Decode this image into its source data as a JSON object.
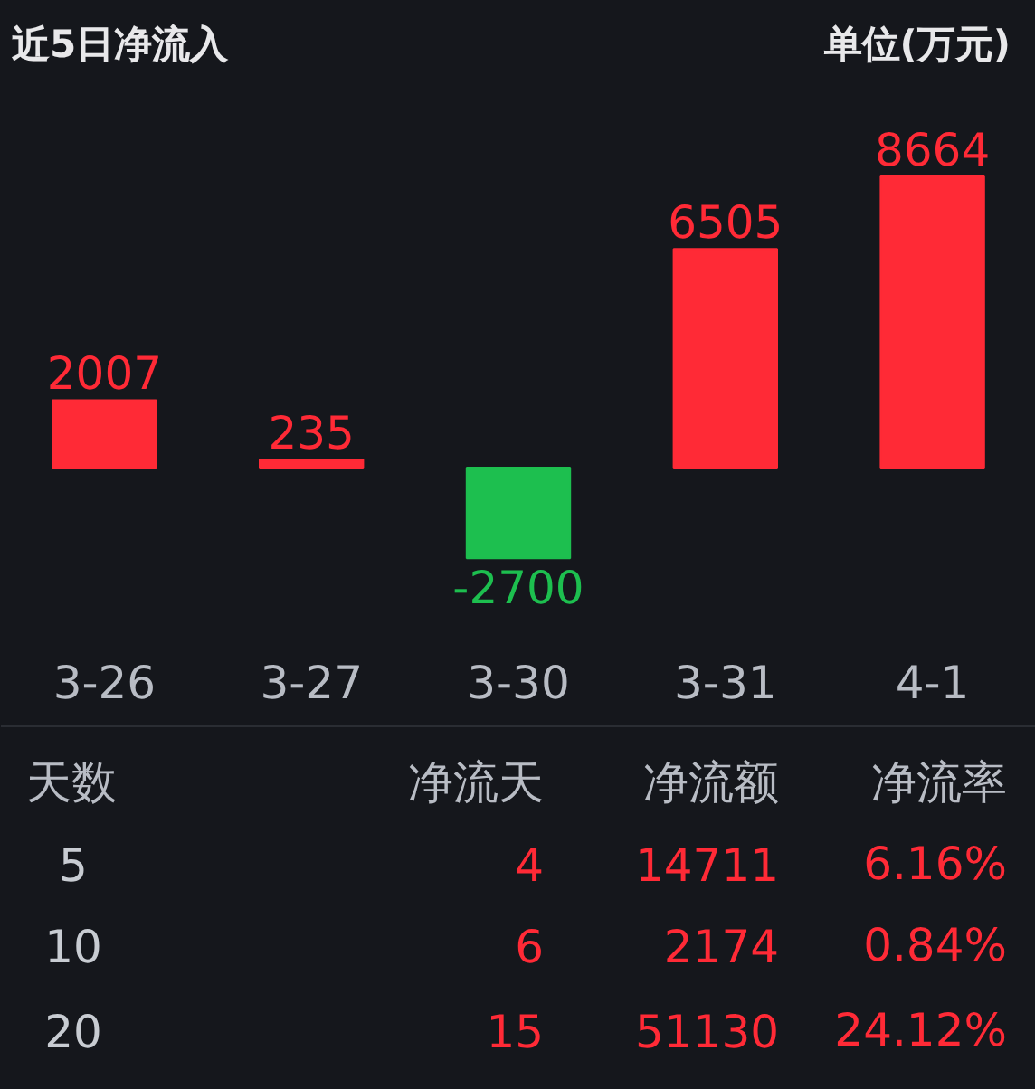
{
  "chart_data": [
    {
      "type": "bar",
      "title": "近5日净流入",
      "subtitle": "单位(万元)",
      "categories": [
        "3-26",
        "3-27",
        "3-30",
        "3-31",
        "4-1"
      ],
      "values": [
        2007,
        235,
        -2700,
        6505,
        8664
      ],
      "colors": [
        "#ff2a36",
        "#ff2a36",
        "#1dbf4f",
        "#ff2a36",
        "#ff2a36"
      ],
      "data_labels": true,
      "grid": false
    },
    {
      "type": "other",
      "annotations": [
        "天数",
        "净流天",
        "净流额",
        "净流率",
        "5",
        "4",
        "14711",
        "6.16%",
        "10",
        "6",
        "2174",
        "0.84%",
        "20",
        "15",
        "51130",
        "24.12%"
      ]
    }
  ]
}
